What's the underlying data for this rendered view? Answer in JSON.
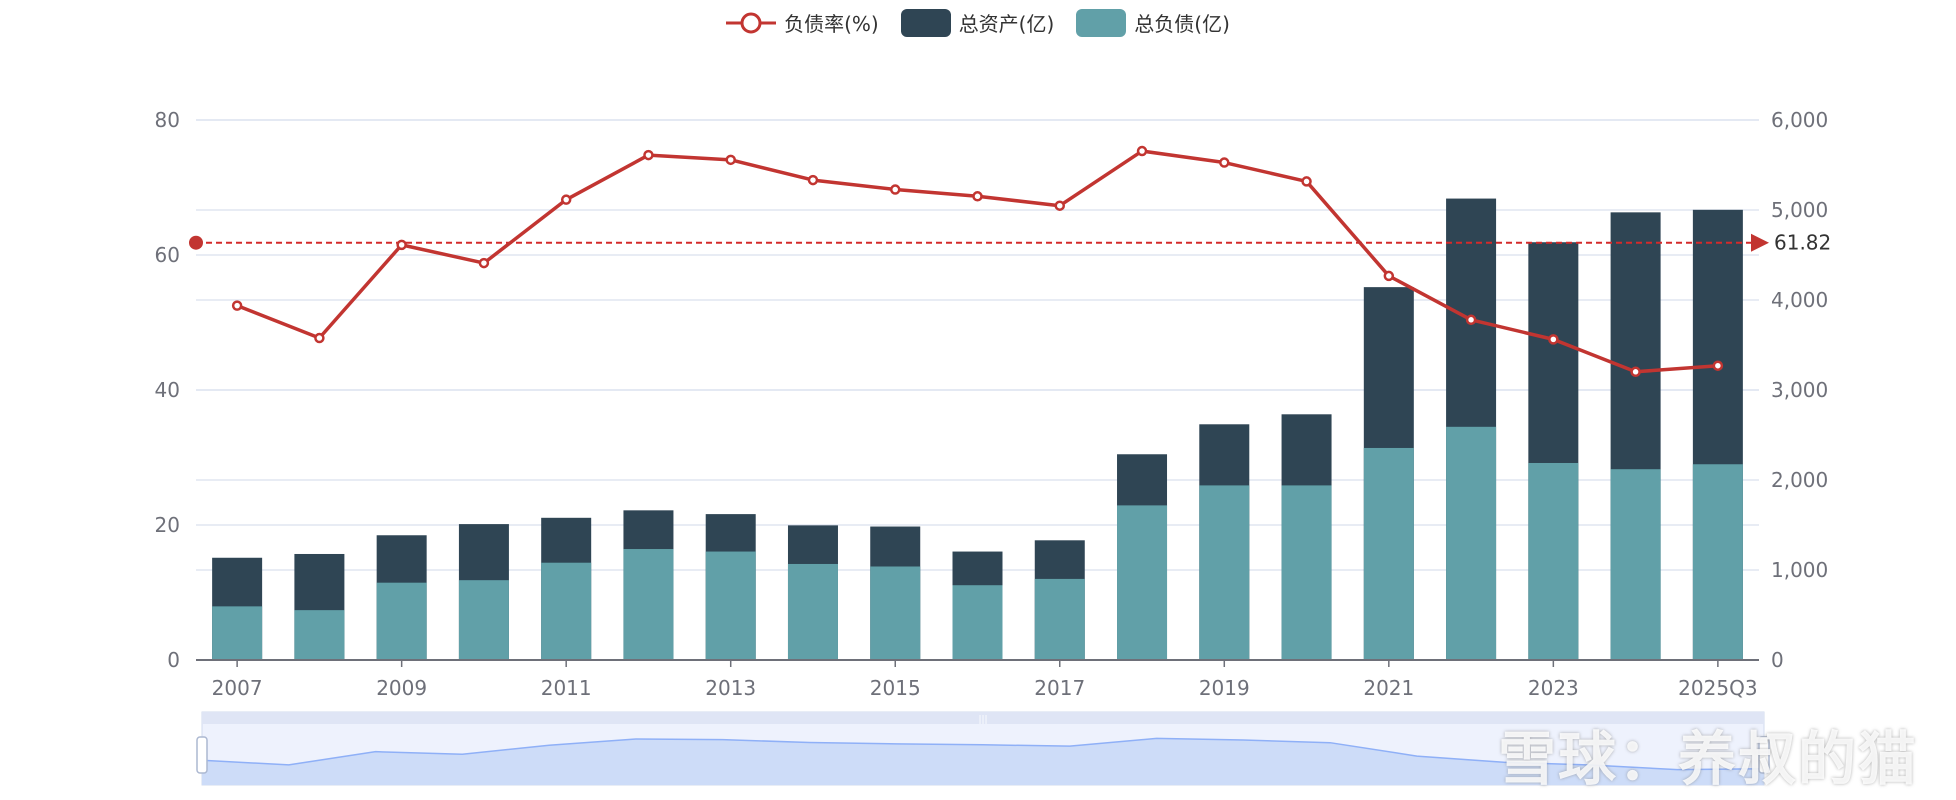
{
  "chart_data": {
    "type": "bar+line",
    "categories": [
      "2007",
      "2008",
      "2009",
      "2010",
      "2011",
      "2012",
      "2013",
      "2014",
      "2015",
      "2016",
      "2017",
      "2018",
      "2019",
      "2020",
      "2021",
      "2022",
      "2023",
      "2024",
      "2025Q3"
    ],
    "x_tick_labels": [
      "2007",
      "2009",
      "2011",
      "2013",
      "2015",
      "2017",
      "2019",
      "2021",
      "2023",
      "2025Q3"
    ],
    "series": [
      {
        "name": "负债率(%)",
        "type": "line",
        "axis": "left",
        "color": "#c23531",
        "values": [
          52.5,
          47.7,
          61.5,
          58.8,
          68.2,
          74.8,
          74.1,
          71.1,
          69.7,
          68.7,
          67.3,
          75.4,
          73.7,
          70.9,
          56.9,
          50.4,
          47.5,
          42.7,
          43.6
        ]
      },
      {
        "name": "总资产(亿)",
        "type": "bar",
        "axis": "right",
        "color": "#2f4554",
        "values": [
          1136,
          1178,
          1386,
          1510,
          1580,
          1663,
          1621,
          1496,
          1483,
          1205,
          1330,
          2286,
          2619,
          2730,
          4143,
          5127,
          4642,
          4974,
          5002
        ]
      },
      {
        "name": "总负债(亿)",
        "type": "bar",
        "axis": "right",
        "color": "#61a0a8",
        "values": [
          596,
          554,
          859,
          887,
          1081,
          1233,
          1205,
          1067,
          1039,
          831,
          901,
          1718,
          1940,
          1940,
          2356,
          2591,
          2189,
          2120,
          2175
        ]
      }
    ],
    "left_axis": {
      "range": [
        0,
        80
      ],
      "ticks": [
        "0",
        "20",
        "40",
        "60",
        "80"
      ]
    },
    "right_axis": {
      "range": [
        0,
        6000
      ],
      "ticks": [
        "0",
        "1,000",
        "2,000",
        "3,000",
        "4,000",
        "5,000",
        "6,000"
      ]
    },
    "mark_line": {
      "value": 61.82,
      "label": "61.82",
      "series": "负债率(%)"
    },
    "grid": true,
    "legend_position": "top-center",
    "data_zoom": {
      "start_percent": 0,
      "end_percent": 100
    }
  },
  "legend": {
    "items": [
      "负债率(%)",
      "总资产(亿)",
      "总负债(亿)"
    ]
  },
  "watermark": "雪球：养叔的猫"
}
